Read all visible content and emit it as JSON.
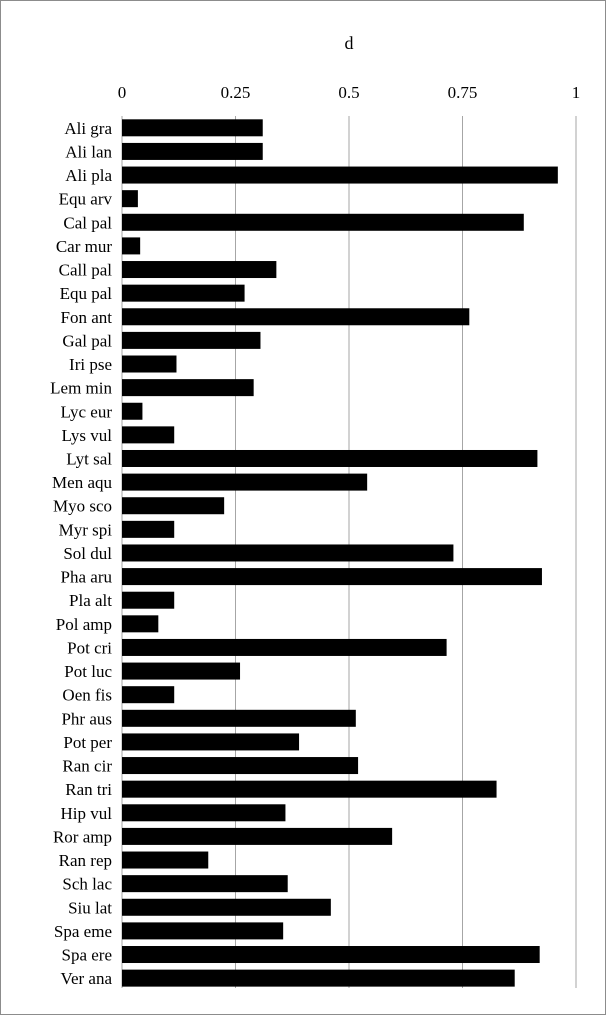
{
  "chart_data": {
    "type": "bar",
    "orientation": "horizontal",
    "title": "d",
    "xlabel": "",
    "ylabel": "",
    "xlim": [
      0,
      1
    ],
    "ticks": [
      {
        "value": 0,
        "label": "0"
      },
      {
        "value": 0.25,
        "label": "0.25"
      },
      {
        "value": 0.5,
        "label": "0.5"
      },
      {
        "value": 0.75,
        "label": "0.75"
      },
      {
        "value": 1,
        "label": "1"
      }
    ],
    "x_axis_position": "top",
    "grid": true,
    "bar_color": "#000000",
    "grid_color": "#a6a6a6",
    "categories": [
      "Ali gra",
      "Ali lan",
      "Ali pla",
      "Equ arv",
      "Cal pal",
      "Car mur",
      "Call pal",
      "Equ pal",
      "Fon ant",
      "Gal pal",
      "Iri pse",
      "Lem min",
      "Lyc eur",
      "Lys vul",
      "Lyt sal",
      "Men aqu",
      "Myo sco",
      "Myr spi",
      "Sol dul",
      "Pha aru",
      "Pla alt",
      "Pol amp",
      "Pot cri",
      "Pot luc",
      "Oen fis",
      "Phr aus",
      "Pot per",
      "Ran cir",
      "Ran tri",
      "Hip vul",
      "Ror amp",
      "Ran rep",
      "Sch lac",
      "Siu lat",
      "Spa eme",
      "Spa ere",
      "Ver ana"
    ],
    "values": [
      0.31,
      0.31,
      0.96,
      0.035,
      0.885,
      0.04,
      0.34,
      0.27,
      0.765,
      0.305,
      0.12,
      0.29,
      0.045,
      0.115,
      0.915,
      0.54,
      0.225,
      0.115,
      0.73,
      0.925,
      0.115,
      0.08,
      0.715,
      0.26,
      0.115,
      0.515,
      0.39,
      0.52,
      0.825,
      0.36,
      0.595,
      0.19,
      0.365,
      0.46,
      0.355,
      0.92,
      0.865
    ]
  }
}
